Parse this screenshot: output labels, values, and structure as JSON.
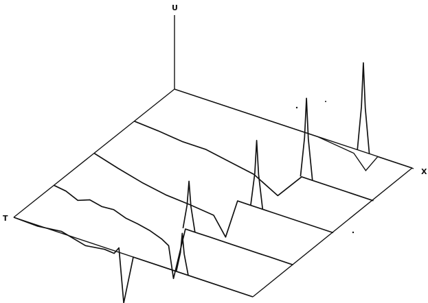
{
  "chart_data": {
    "type": "line",
    "view": "3d-waterfall",
    "axis_labels": {
      "vertical": "U",
      "depth": "X",
      "left": "T"
    },
    "grid": false,
    "series": [
      {
        "x": [
          0.0,
          0.1,
          0.2,
          0.3,
          0.38,
          0.42,
          0.44,
          0.46,
          0.5,
          0.6,
          0.8,
          1.0
        ],
        "u": [
          0.0,
          -0.01,
          0.02,
          -0.05,
          -0.02,
          -0.03,
          0.05,
          -0.55,
          0.0,
          0.0,
          0.0,
          0.0
        ],
        "peak2": {
          "x": 0.705,
          "u": 0.45
        }
      },
      {
        "x": [
          0.0,
          0.05,
          0.1,
          0.15,
          0.2,
          0.25,
          0.3,
          0.35,
          0.4,
          0.45,
          0.48,
          0.5,
          0.55,
          0.6,
          0.65,
          0.7,
          0.75,
          0.8,
          0.85,
          0.9,
          1.0
        ],
        "u": [
          0.0,
          -0.02,
          -0.08,
          -0.03,
          -0.06,
          -0.05,
          -0.1,
          -0.12,
          -0.15,
          -0.2,
          -0.25,
          -0.6,
          0.0,
          0.0,
          0.0,
          0.0,
          0.0,
          0.0,
          0.0,
          0.0,
          0.0
        ],
        "peak2": {
          "x": 0.565,
          "u": 0.55
        }
      },
      {
        "x": [
          0.0,
          0.1,
          0.2,
          0.3,
          0.4,
          0.5,
          0.55,
          0.6,
          0.65,
          0.7,
          0.75,
          1.0
        ],
        "u": [
          0.0,
          -0.08,
          -0.15,
          -0.2,
          -0.22,
          -0.25,
          -0.45,
          0.0,
          0.0,
          0.0,
          0.0,
          0.0
        ],
        "peak2": {
          "x": 0.68,
          "u": 0.75
        }
      },
      {
        "x": [
          0.0,
          0.1,
          0.2,
          0.3,
          0.4,
          0.5,
          0.6,
          0.7,
          1.0
        ],
        "u": [
          0.0,
          -0.02,
          -0.05,
          -0.05,
          -0.1,
          -0.15,
          -0.3,
          0.0,
          0.0
        ],
        "peak2": {
          "x": 0.72,
          "u": 0.9
        }
      },
      {
        "x": [
          0.0,
          0.2,
          0.4,
          0.6,
          0.75,
          0.8,
          0.85,
          1.0
        ],
        "u": [
          0.0,
          0.0,
          0.0,
          0.0,
          -0.05,
          -0.2,
          0.0,
          0.0
        ],
        "peak2": {
          "x": 0.79,
          "u": 1.0
        }
      }
    ]
  }
}
